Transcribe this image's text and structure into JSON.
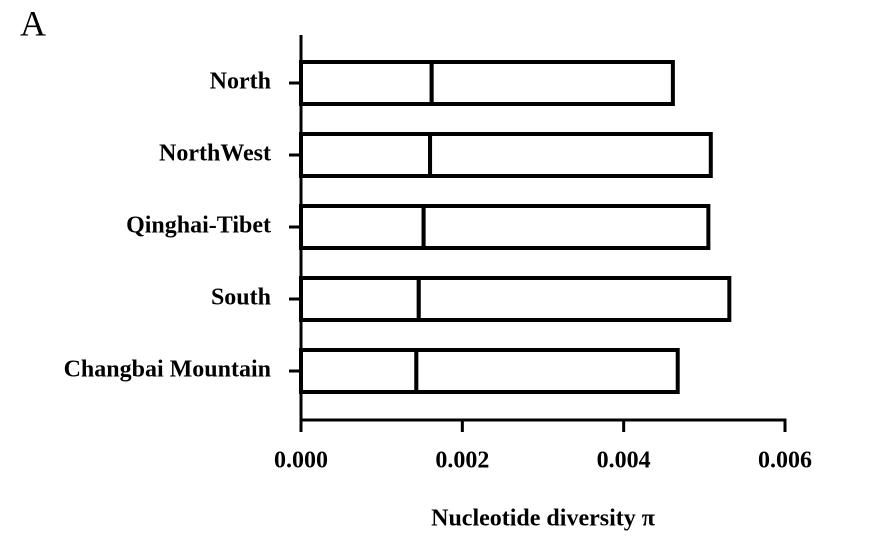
{
  "chart_data": {
    "type": "stacked-barh",
    "panel_label": "A",
    "xlabel": "Nucleotide diversity π",
    "categories": [
      "North",
      "NorthWest",
      "Qinghai-Tibet",
      "South",
      "Changbai Mountain"
    ],
    "series": [
      {
        "color": "#ffffff",
        "values": [
          0.00162,
          0.0016,
          0.00152,
          0.00146,
          0.00143
        ]
      },
      {
        "color": "#ffffff",
        "values": [
          0.00299,
          0.00348,
          0.00353,
          0.00385,
          0.00324
        ]
      }
    ],
    "xlim": [
      0,
      0.006
    ],
    "xticks": [
      {
        "value": 0,
        "label": "0.000"
      },
      {
        "value": 0.002,
        "label": "0.002"
      },
      {
        "value": 0.004,
        "label": "0.004"
      },
      {
        "value": 0.006,
        "label": "0.006"
      }
    ]
  }
}
